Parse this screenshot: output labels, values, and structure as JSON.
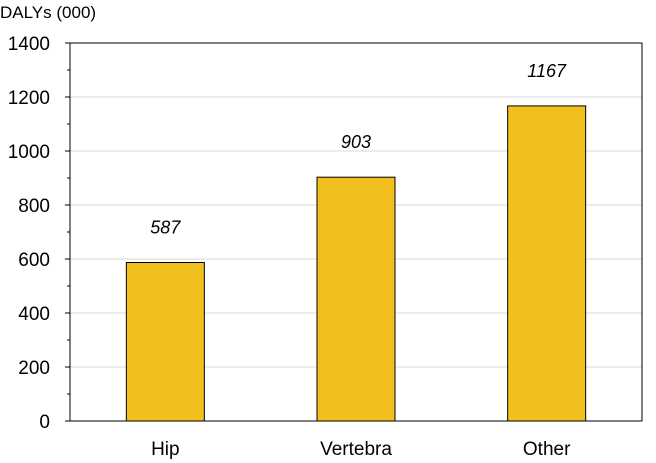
{
  "chart_data": {
    "type": "bar",
    "ylabel": "DALYs (000)",
    "xlabel": "",
    "categories": [
      "Hip",
      "Vertebra",
      "Other"
    ],
    "values": [
      587,
      903,
      1167
    ],
    "data_labels": [
      "587",
      "903",
      "1167"
    ],
    "ylim": [
      0,
      1400
    ],
    "yticks": [
      0,
      200,
      400,
      600,
      800,
      1000,
      1200,
      1400
    ],
    "ytick_labels": [
      "0",
      "200",
      "400",
      "600",
      "800",
      "1000",
      "1200",
      "1400"
    ],
    "grid": true,
    "bar_color": "#F2C01E",
    "bar_edge_color": "#000000",
    "grid_color": "#D9D9D9"
  }
}
